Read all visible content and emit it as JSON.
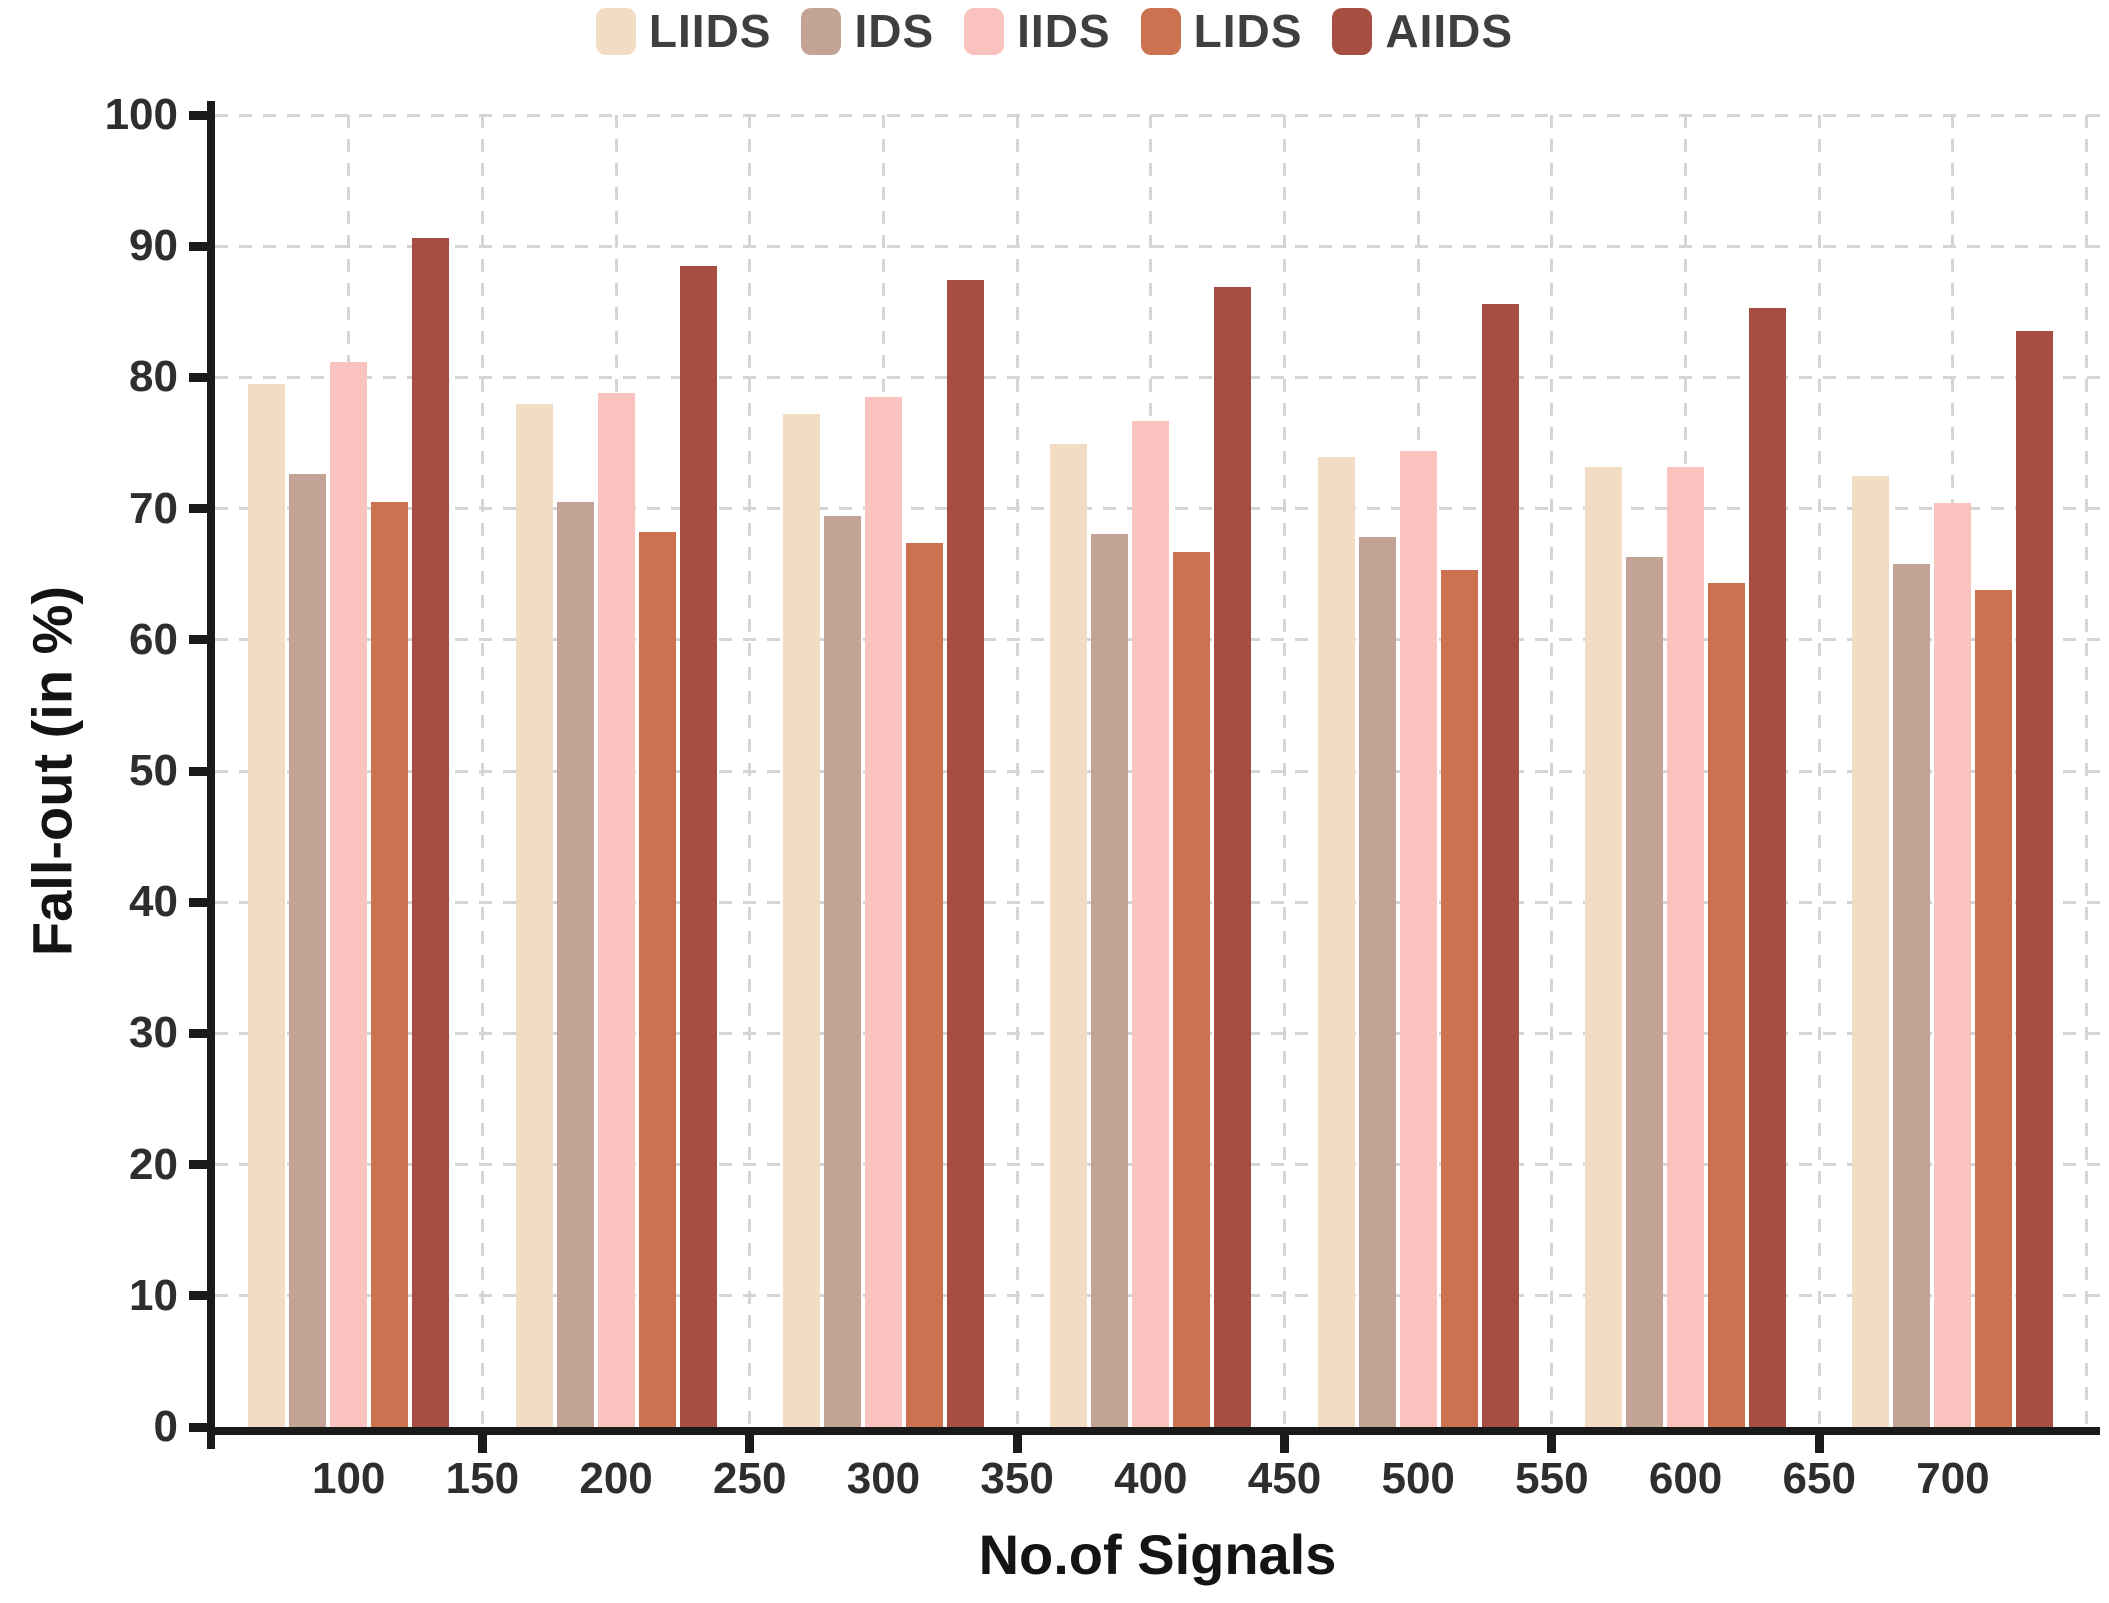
{
  "chart_data": {
    "type": "bar",
    "title": "",
    "xlabel": "No.of Signals",
    "ylabel": "Fall-out (in %)",
    "categories": [
      100,
      200,
      300,
      400,
      500,
      600,
      700
    ],
    "series": [
      {
        "name": "LIIDS",
        "color": "#F2DCC4",
        "values": [
          79.5,
          78.0,
          77.2,
          74.9,
          73.9,
          73.2,
          72.5
        ]
      },
      {
        "name": "IDS",
        "color": "#C3A396",
        "values": [
          72.6,
          70.5,
          69.4,
          68.1,
          67.8,
          66.3,
          65.8
        ]
      },
      {
        "name": "IIDS",
        "color": "#FBC3C0",
        "values": [
          81.2,
          78.8,
          78.5,
          76.7,
          74.4,
          73.2,
          70.4
        ]
      },
      {
        "name": "LIDS",
        "color": "#CD7250",
        "values": [
          70.5,
          68.2,
          67.4,
          66.7,
          65.3,
          64.3,
          63.8
        ]
      },
      {
        "name": "AIIDS",
        "color": "#A64E40",
        "values": [
          90.6,
          88.5,
          87.4,
          86.9,
          85.6,
          85.3,
          83.5
        ]
      }
    ],
    "ylim": [
      0,
      100
    ],
    "yticks": [
      0,
      10,
      20,
      30,
      40,
      50,
      60,
      70,
      80,
      90,
      100
    ],
    "xlim": [
      50,
      755
    ],
    "xticks": [
      100,
      150,
      200,
      250,
      300,
      350,
      400,
      450,
      500,
      550,
      600,
      650,
      700
    ],
    "x_gridlines": [
      100,
      150,
      200,
      250,
      300,
      350,
      400,
      450,
      500,
      550,
      600,
      650,
      700,
      750
    ],
    "x_tick_marks": [
      150,
      250,
      350,
      450,
      550,
      650
    ],
    "grid": "dashed",
    "gridline_color": "#D5D5D5",
    "axis_color": "#1A1A1A",
    "tick_label_color": "#2E2E2E",
    "legend_position": "top",
    "legend_text_color": "#3F3F3F"
  }
}
